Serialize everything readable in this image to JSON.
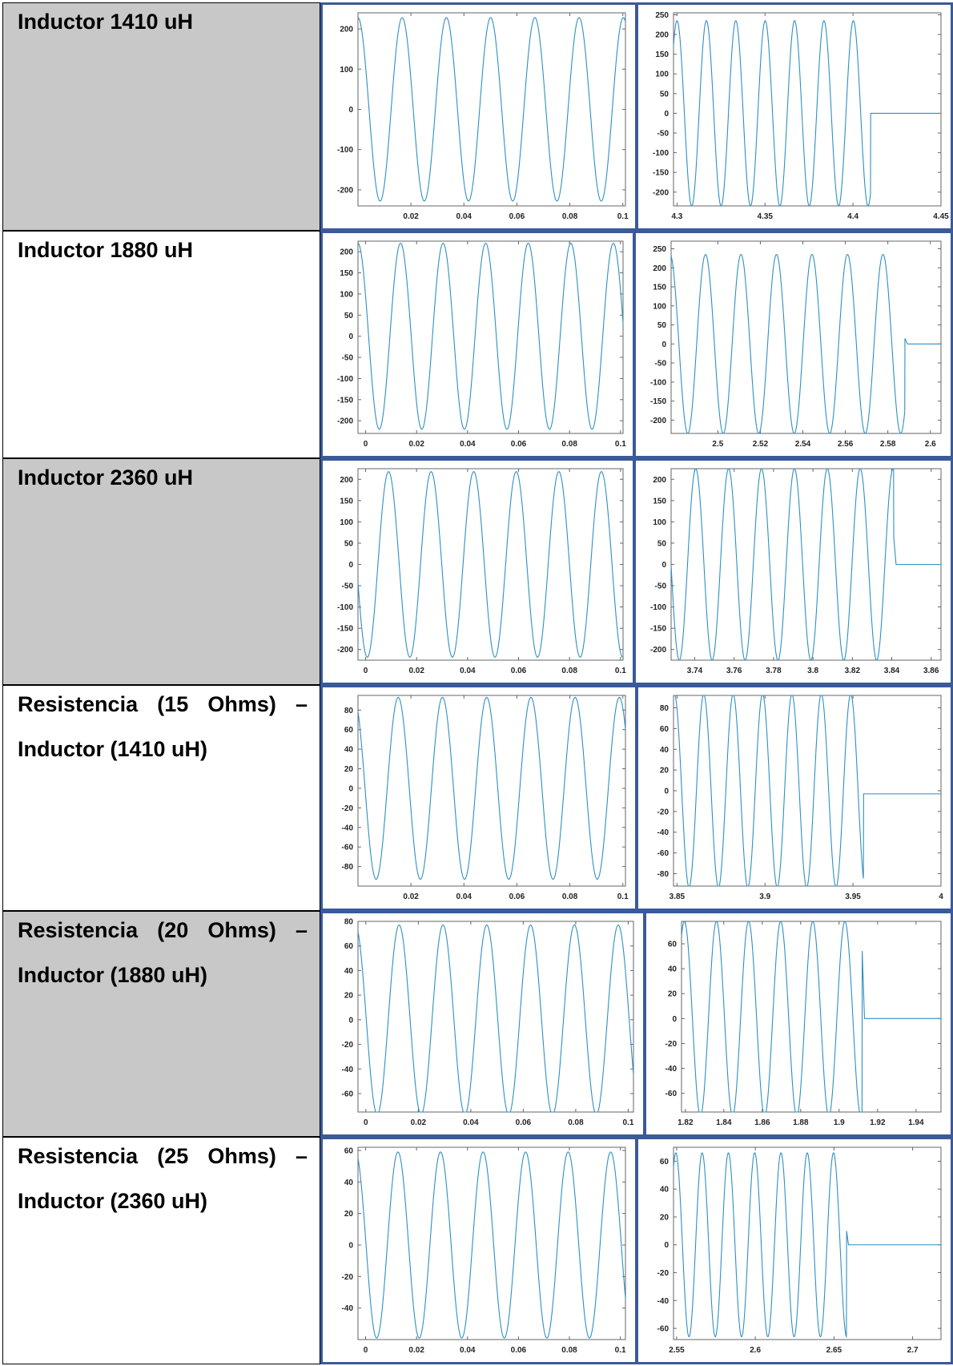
{
  "rows": [
    {
      "label": "Inductor 1410 uH"
    },
    {
      "label": "Inductor 1880 uH"
    },
    {
      "label": "Inductor 2360 uH"
    },
    {
      "label_parts": [
        "Resistencia",
        "(15",
        "Ohms)",
        "–"
      ],
      "label_line2": "Inductor (1410 uH)"
    },
    {
      "label_parts": [
        "Resistencia",
        "(20",
        "Ohms)",
        "–"
      ],
      "label_line2": "Inductor (1880 uH)"
    },
    {
      "label_parts": [
        "Resistencia",
        "(25",
        "Ohms)",
        "–"
      ],
      "label_line2": "Inductor (2360 uH)"
    }
  ],
  "colors": {
    "trace": "#2f8fc4",
    "border": "#3a5a99",
    "label_bg": "#c8c8c8"
  },
  "chart_data": [
    {
      "type": "line",
      "amp": 228,
      "period": 0.0167,
      "phase": 0.0,
      "xlim": [
        0.0,
        0.101
      ],
      "ylim": [
        -240,
        240
      ],
      "xticks": [
        0.02,
        0.04,
        0.06,
        0.08,
        0.1
      ],
      "xtick_labels": [
        "0.02",
        "0.04",
        "0.06",
        "0.08",
        "0.1"
      ],
      "yticks": [
        200,
        100,
        0,
        -100,
        -200
      ],
      "ytick_labels": [
        "200",
        "100",
        "0",
        "-100",
        "-200"
      ]
    },
    {
      "type": "line",
      "amp": 235,
      "period": 0.0167,
      "phase": 4.3,
      "xlim": [
        4.298,
        4.45
      ],
      "ylim": [
        -235,
        255
      ],
      "off_at": 4.41,
      "off_level": 0,
      "spike": null,
      "xticks": [
        4.3,
        4.35,
        4.4,
        4.45
      ],
      "xtick_labels": [
        "4.3",
        "4.35",
        "4.4",
        "4.45"
      ],
      "yticks": [
        250,
        200,
        150,
        100,
        50,
        0,
        -50,
        -100,
        -150,
        -200
      ],
      "ytick_labels": [
        "250",
        "200",
        "150",
        "100",
        "50",
        "0",
        "-50",
        "-100",
        "-150",
        "-200"
      ]
    },
    {
      "type": "line",
      "amp": 220,
      "period": 0.0167,
      "phase": -0.003,
      "xlim": [
        -0.003,
        0.101
      ],
      "ylim": [
        -230,
        225
      ],
      "xticks": [
        0,
        0.02,
        0.04,
        0.06,
        0.08,
        0.1
      ],
      "xtick_labels": [
        "0",
        "0.02",
        "0.04",
        "0.06",
        "0.08",
        "0.1"
      ],
      "yticks": [
        200,
        150,
        100,
        50,
        0,
        -50,
        -100,
        -150,
        -200
      ],
      "ytick_labels": [
        "200",
        "150",
        "100",
        "50",
        "0",
        "-50",
        "-100",
        "-150",
        "-200"
      ]
    },
    {
      "type": "line",
      "amp": 235,
      "period": 0.0167,
      "phase": 2.4775,
      "xlim": [
        2.478,
        2.605
      ],
      "ylim": [
        -235,
        270
      ],
      "off_at": 2.588,
      "off_level": 0,
      "spike": 15,
      "xticks": [
        2.5,
        2.52,
        2.54,
        2.56,
        2.58,
        2.6
      ],
      "xtick_labels": [
        "2.5",
        "2.52",
        "2.54",
        "2.56",
        "2.58",
        "2.6"
      ],
      "yticks": [
        250,
        200,
        150,
        100,
        50,
        0,
        -50,
        -100,
        -150,
        -200
      ],
      "ytick_labels": [
        "250",
        "200",
        "150",
        "100",
        "50",
        "0",
        "-50",
        "-100",
        "-150",
        "-200"
      ]
    },
    {
      "type": "line",
      "amp": 218,
      "period": 0.0167,
      "phase": 0.009,
      "xlim": [
        -0.003,
        0.101
      ],
      "ylim": [
        -225,
        225
      ],
      "xticks": [
        0,
        0.02,
        0.04,
        0.06,
        0.08,
        0.1
      ],
      "xtick_labels": [
        "0",
        "0.02",
        "0.04",
        "0.06",
        "0.08",
        "0.1"
      ],
      "yticks": [
        200,
        150,
        100,
        50,
        0,
        -50,
        -100,
        -150,
        -200
      ],
      "ytick_labels": [
        "200",
        "150",
        "100",
        "50",
        "0",
        "-50",
        "-100",
        "-150",
        "-200"
      ]
    },
    {
      "type": "line",
      "amp": 225,
      "period": 0.0167,
      "phase": 3.7405,
      "xlim": [
        3.728,
        3.865
      ],
      "ylim": [
        -225,
        225
      ],
      "off_at": 3.841,
      "off_level": 0,
      "spike": 65,
      "xticks": [
        3.74,
        3.76,
        3.78,
        3.8,
        3.82,
        3.84,
        3.86
      ],
      "xtick_labels": [
        "3.74",
        "3.76",
        "3.78",
        "3.8",
        "3.82",
        "3.84",
        "3.86"
      ],
      "yticks": [
        200,
        150,
        100,
        50,
        0,
        -50,
        -100,
        -150,
        -200
      ],
      "ytick_labels": [
        "200",
        "150",
        "100",
        "50",
        "0",
        "-50",
        "-100",
        "-150",
        "-200"
      ]
    },
    {
      "type": "line",
      "amp": 93,
      "period": 0.0167,
      "phase": -0.0015,
      "xlim": [
        0.0,
        0.101
      ],
      "ylim": [
        -100,
        95
      ],
      "xticks": [
        0.02,
        0.04,
        0.06,
        0.08,
        0.1
      ],
      "xtick_labels": [
        "0.02",
        "0.04",
        "0.06",
        "0.08",
        "0.1"
      ],
      "yticks": [
        80,
        60,
        40,
        20,
        0,
        -20,
        -40,
        -60,
        -80
      ],
      "ytick_labels": [
        "80",
        "60",
        "40",
        "20",
        "0",
        "-20",
        "-40",
        "-60",
        "-80"
      ]
    },
    {
      "type": "line",
      "amp": 93,
      "period": 0.0167,
      "phase": 3.8485,
      "xlim": [
        3.848,
        4.0
      ],
      "ylim": [
        -92,
        92
      ],
      "off_at": 3.956,
      "off_level": -3,
      "spike": null,
      "xticks": [
        3.85,
        3.9,
        3.95,
        4.0
      ],
      "xtick_labels": [
        "3.85",
        "3.9",
        "3.95",
        "4"
      ],
      "yticks": [
        80,
        60,
        40,
        20,
        0,
        -20,
        -40,
        -60,
        -80
      ],
      "ytick_labels": [
        "80",
        "60",
        "40",
        "20",
        "0",
        "-20",
        "-40",
        "-60",
        "-80"
      ]
    },
    {
      "type": "line",
      "amp": 77,
      "period": 0.0167,
      "phase": -0.004,
      "xlim": [
        -0.003,
        0.102
      ],
      "ylim": [
        -75,
        80
      ],
      "xticks": [
        0,
        0.02,
        0.04,
        0.06,
        0.08,
        0.1
      ],
      "xtick_labels": [
        "0",
        "0.02",
        "0.04",
        "0.06",
        "0.08",
        "0.1"
      ],
      "yticks": [
        80,
        60,
        40,
        20,
        0,
        -20,
        -40,
        -60
      ],
      "ytick_labels": [
        "80",
        "60",
        "40",
        "20",
        "0",
        "-20",
        "-40",
        "-60"
      ]
    },
    {
      "type": "line",
      "amp": 78,
      "period": 0.0167,
      "phase": 1.8195,
      "xlim": [
        1.818,
        1.953
      ],
      "ylim": [
        -75,
        78
      ],
      "off_at": 1.912,
      "off_level": 0,
      "spike": 55,
      "xticks": [
        1.82,
        1.84,
        1.86,
        1.88,
        1.9,
        1.92,
        1.94
      ],
      "xtick_labels": [
        "1.82",
        "1.84",
        "1.86",
        "1.88",
        "1.9",
        "1.92",
        "1.94"
      ],
      "yticks": [
        60,
        40,
        20,
        0,
        -20,
        -40,
        -60
      ],
      "ytick_labels": [
        "60",
        "40",
        "20",
        "0",
        "-20",
        "-40",
        "-60"
      ]
    },
    {
      "type": "line",
      "amp": 59,
      "period": 0.0167,
      "phase": -0.004,
      "xlim": [
        -0.003,
        0.102
      ],
      "ylim": [
        -60,
        62
      ],
      "xticks": [
        0,
        0.02,
        0.04,
        0.06,
        0.08,
        0.1
      ],
      "xtick_labels": [
        "0",
        "0.02",
        "0.04",
        "0.06",
        "0.08",
        "0.1"
      ],
      "yticks": [
        60,
        40,
        20,
        0,
        -20,
        -40
      ],
      "ytick_labels": [
        "60",
        "40",
        "20",
        "0",
        "-20",
        "-40"
      ]
    },
    {
      "type": "line",
      "amp": 66,
      "period": 0.0167,
      "phase": 2.5495,
      "xlim": [
        2.548,
        2.718
      ],
      "ylim": [
        -68,
        70
      ],
      "off_at": 2.658,
      "off_level": 0,
      "spike": 10,
      "xticks": [
        2.55,
        2.6,
        2.65,
        2.7
      ],
      "xtick_labels": [
        "2.55",
        "2.6",
        "2.65",
        "2.7"
      ],
      "yticks": [
        60,
        40,
        20,
        0,
        -20,
        -40,
        -60
      ],
      "ytick_labels": [
        "60",
        "40",
        "20",
        "0",
        "-20",
        "-40",
        "-60"
      ]
    }
  ]
}
